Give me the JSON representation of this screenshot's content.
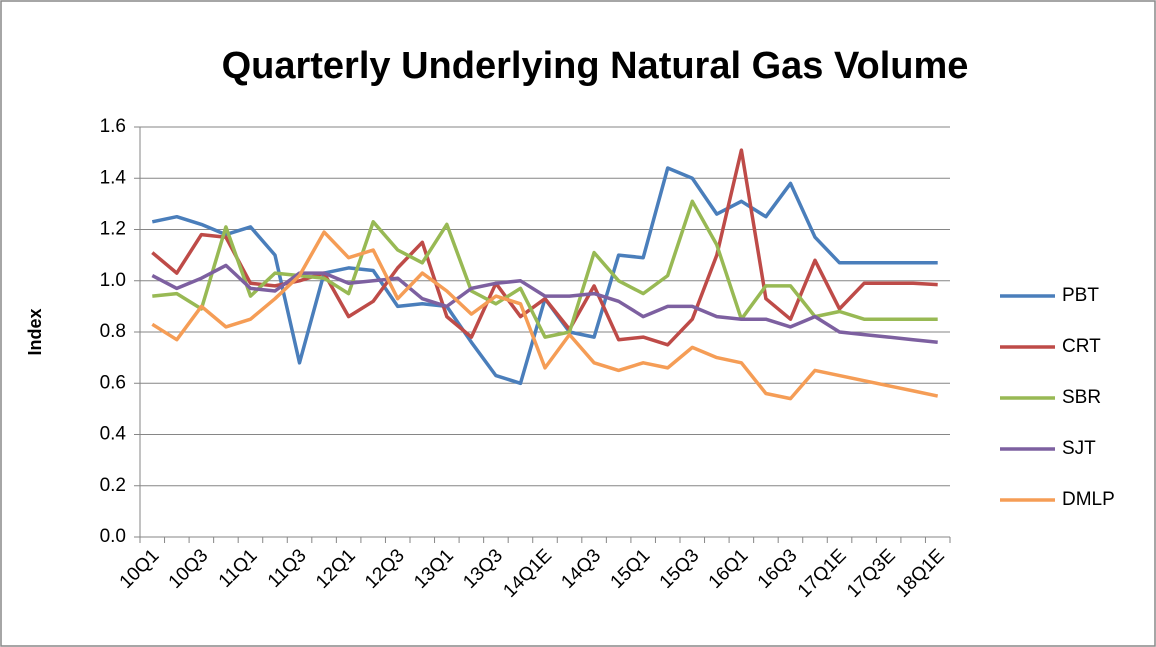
{
  "chart_data": {
    "type": "line",
    "title": "Quarterly Underlying Natural Gas Volume",
    "y_label": "Index",
    "categories": [
      "10Q1",
      null,
      "10Q3",
      null,
      "11Q1",
      null,
      "11Q3",
      null,
      "12Q1",
      null,
      "12Q3",
      null,
      "13Q1",
      null,
      "13Q3",
      null,
      "14Q1E",
      null,
      "14Q3",
      null,
      "15Q1",
      null,
      "15Q3",
      null,
      "16Q1",
      null,
      "16Q3",
      null,
      "17Q1E",
      null,
      "17Q3E",
      null,
      "18Q1E"
    ],
    "series": [
      {
        "name": "PBT",
        "color": "#4a7ebb",
        "values": [
          1.23,
          1.25,
          1.22,
          1.18,
          1.21,
          1.1,
          0.68,
          1.03,
          1.05,
          1.04,
          0.9,
          0.91,
          0.9,
          0.76,
          0.63,
          0.6,
          0.93,
          0.8,
          0.78,
          1.1,
          1.09,
          1.44,
          1.4,
          1.26,
          1.31,
          1.25,
          1.38,
          1.17,
          1.07,
          1.07,
          1.07,
          1.07,
          1.07
        ]
      },
      {
        "name": "CRT",
        "color": "#be4b48",
        "values": [
          1.11,
          1.03,
          1.18,
          1.17,
          0.99,
          0.98,
          1.0,
          1.03,
          0.86,
          0.92,
          1.05,
          1.15,
          0.86,
          0.78,
          0.99,
          0.86,
          0.93,
          0.81,
          0.98,
          0.77,
          0.78,
          0.75,
          0.85,
          1.1,
          1.51,
          0.93,
          0.85,
          1.08,
          0.89,
          0.99,
          0.99,
          0.99,
          0.985
        ]
      },
      {
        "name": "SBR",
        "color": "#98b954",
        "values": [
          0.94,
          0.95,
          0.89,
          1.21,
          0.94,
          1.03,
          1.02,
          1.01,
          0.95,
          1.23,
          1.12,
          1.07,
          1.22,
          0.96,
          0.91,
          0.97,
          0.78,
          0.8,
          1.11,
          1.0,
          0.95,
          1.02,
          1.31,
          1.14,
          0.85,
          0.98,
          0.98,
          0.86,
          0.88,
          0.85,
          0.85,
          0.85,
          0.85
        ]
      },
      {
        "name": "SJT",
        "color": "#7d60a0",
        "values": [
          1.02,
          0.97,
          1.01,
          1.06,
          0.97,
          0.96,
          1.03,
          1.03,
          0.99,
          1.0,
          1.01,
          0.93,
          0.9,
          0.97,
          0.99,
          1.0,
          0.94,
          0.94,
          0.95,
          0.92,
          0.86,
          0.9,
          0.9,
          0.86,
          0.85,
          0.85,
          0.82,
          0.86,
          0.8,
          0.79,
          0.78,
          0.77,
          0.76
        ]
      },
      {
        "name": "DMLP",
        "color": "#f59d56",
        "values": [
          0.83,
          0.77,
          0.9,
          0.82,
          0.85,
          0.93,
          1.02,
          1.19,
          1.09,
          1.12,
          0.93,
          1.03,
          0.96,
          0.87,
          0.94,
          0.91,
          0.66,
          0.79,
          0.68,
          0.65,
          0.68,
          0.66,
          0.74,
          0.7,
          0.68,
          0.56,
          0.54,
          0.65,
          0.63,
          0.61,
          0.59,
          0.57,
          0.55
        ]
      }
    ],
    "ylim": [
      0,
      1.6
    ],
    "yticks": [
      {
        "value": 0,
        "label": "0.0"
      },
      0.2,
      0.4,
      0.6,
      0.8,
      {
        "value": 1,
        "label": "1.0"
      },
      1.2,
      1.4,
      1.6
    ],
    "grid": true,
    "legend": "right"
  }
}
